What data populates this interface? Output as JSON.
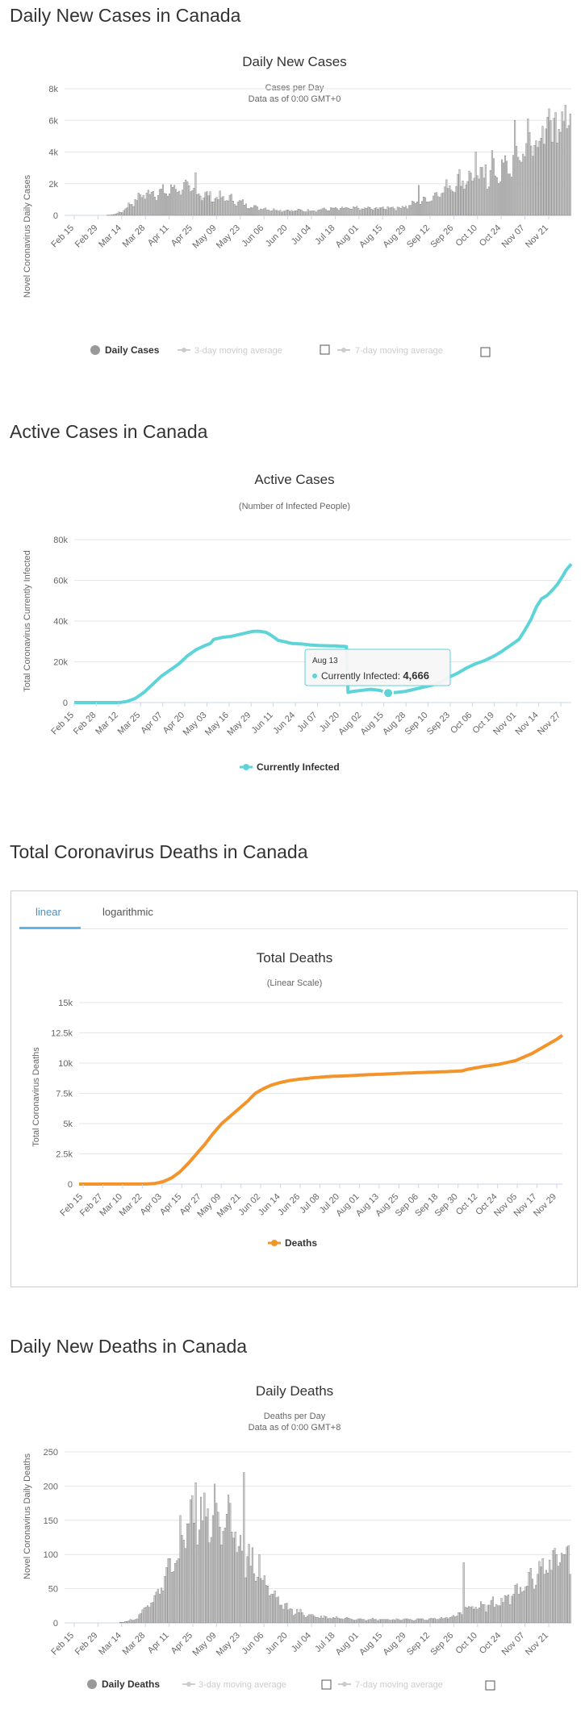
{
  "sections": {
    "daily_cases": "Daily New Cases in Canada",
    "active_cases": "Active Cases in Canada",
    "total_deaths": "Total Coronavirus Deaths in Canada",
    "daily_deaths": "Daily New Deaths in Canada"
  },
  "tabs": {
    "linear": "linear",
    "logarithmic": "logarithmic"
  },
  "colors": {
    "bar": "#cfcfcf",
    "bar_stroke": "#6b6b6b",
    "active_line": "#5ed4d9",
    "deaths_line": "#f2942a",
    "grid": "#e6e6e6",
    "legend_off": "#cccccc"
  },
  "chart_data": [
    {
      "id": "daily_cases",
      "type": "bar",
      "title": "Daily New Cases",
      "subtitle": "Cases per Day",
      "subtitle2": "Data as of 0:00 GMT+0",
      "ylabel": "Novel Coronavirus Daily Cases",
      "ylim": [
        0,
        8000
      ],
      "yticks": [
        "0",
        "2k",
        "4k",
        "6k",
        "8k"
      ],
      "xticks": [
        "Feb 15",
        "Feb 29",
        "Mar 14",
        "Mar 28",
        "Apr 11",
        "Apr 25",
        "May 09",
        "May 23",
        "Jun 06",
        "Jun 20",
        "Jul 04",
        "Jul 18",
        "Aug 01",
        "Aug 15",
        "Aug 29",
        "Sep 12",
        "Sep 26",
        "Oct 10",
        "Oct 24",
        "Nov 07",
        "Nov 21"
      ],
      "start_date": "Feb 15",
      "anchors": [
        [
          0,
          0
        ],
        [
          25,
          0
        ],
        [
          30,
          50
        ],
        [
          35,
          250
        ],
        [
          40,
          700
        ],
        [
          45,
          1100
        ],
        [
          50,
          1400
        ],
        [
          55,
          1500
        ],
        [
          60,
          1400
        ],
        [
          65,
          1600
        ],
        [
          68,
          1750
        ],
        [
          72,
          1700
        ],
        [
          76,
          1650
        ],
        [
          80,
          1500
        ],
        [
          85,
          1300
        ],
        [
          90,
          1150
        ],
        [
          95,
          1100
        ],
        [
          100,
          1050
        ],
        [
          105,
          900
        ],
        [
          110,
          700
        ],
        [
          115,
          550
        ],
        [
          120,
          450
        ],
        [
          125,
          380
        ],
        [
          130,
          330
        ],
        [
          140,
          300
        ],
        [
          150,
          300
        ],
        [
          160,
          380
        ],
        [
          170,
          420
        ],
        [
          180,
          430
        ],
        [
          190,
          420
        ],
        [
          200,
          500
        ],
        [
          205,
          480
        ],
        [
          210,
          600
        ],
        [
          215,
          750
        ],
        [
          220,
          900
        ],
        [
          225,
          1150
        ],
        [
          230,
          1500
        ],
        [
          235,
          1800
        ],
        [
          240,
          2100
        ],
        [
          245,
          2300
        ],
        [
          250,
          2350
        ],
        [
          255,
          2300
        ],
        [
          260,
          2400
        ],
        [
          265,
          2700
        ],
        [
          270,
          2900
        ],
        [
          275,
          3300
        ],
        [
          280,
          4100
        ],
        [
          285,
          4500
        ],
        [
          290,
          4800
        ],
        [
          295,
          5100
        ],
        [
          300,
          5500
        ],
        [
          305,
          6100
        ],
        [
          308,
          6000
        ]
      ],
      "spikes": [
        [
          80,
          2700
        ],
        [
          217,
          1900
        ],
        [
          248,
          2800
        ],
        [
          252,
          4000
        ],
        [
          258,
          3200
        ],
        [
          262,
          4100
        ],
        [
          276,
          6000
        ],
        [
          284,
          6100
        ],
        [
          296,
          6200
        ],
        [
          301,
          6500
        ]
      ],
      "legend": {
        "daily": "Daily Cases",
        "ma3": "3-day moving average",
        "ma7": "7-day moving average"
      }
    },
    {
      "id": "active_cases",
      "type": "line",
      "title": "Active Cases",
      "subtitle": "(Number of Infected People)",
      "ylabel": "Total Coronavirus Currently Infected",
      "ylim": [
        0,
        80000
      ],
      "yticks": [
        "0",
        "20k",
        "40k",
        "60k",
        "80k"
      ],
      "xticks": [
        "Feb 15",
        "Feb 28",
        "Mar 12",
        "Mar 25",
        "Apr 07",
        "Apr 20",
        "May 03",
        "May 16",
        "May 29",
        "Jun 11",
        "Jun 24",
        "Jul 07",
        "Jul 20",
        "Aug 02",
        "Aug 15",
        "Aug 28",
        "Sep 10",
        "Sep 23",
        "Oct 06",
        "Oct 19",
        "Nov 01",
        "Nov 14",
        "Nov 27"
      ],
      "start_date": "Feb 15",
      "anchors": [
        [
          0,
          0
        ],
        [
          26,
          0
        ],
        [
          30,
          500
        ],
        [
          35,
          2000
        ],
        [
          40,
          5000
        ],
        [
          45,
          9000
        ],
        [
          50,
          13000
        ],
        [
          55,
          16000
        ],
        [
          60,
          19000
        ],
        [
          65,
          23000
        ],
        [
          70,
          26000
        ],
        [
          75,
          28000
        ],
        [
          78,
          29000
        ],
        [
          80,
          31000
        ],
        [
          85,
          32000
        ],
        [
          90,
          32500
        ],
        [
          95,
          33500
        ],
        [
          100,
          34500
        ],
        [
          103,
          35000
        ],
        [
          106,
          35000
        ],
        [
          110,
          34500
        ],
        [
          113,
          33000
        ],
        [
          117,
          30500
        ],
        [
          120,
          30000
        ],
        [
          125,
          29000
        ],
        [
          130,
          28800
        ],
        [
          135,
          28300
        ],
        [
          140,
          28000
        ],
        [
          150,
          27800
        ],
        [
          156,
          27500
        ],
        [
          157,
          5000
        ],
        [
          160,
          5500
        ],
        [
          165,
          6000
        ],
        [
          170,
          6500
        ],
        [
          175,
          6000
        ],
        [
          180,
          4666
        ],
        [
          185,
          5000
        ],
        [
          190,
          5500
        ],
        [
          195,
          6500
        ],
        [
          200,
          7500
        ],
        [
          205,
          8500
        ],
        [
          210,
          10000
        ],
        [
          215,
          12500
        ],
        [
          220,
          14500
        ],
        [
          225,
          17000
        ],
        [
          230,
          19000
        ],
        [
          235,
          20500
        ],
        [
          240,
          22500
        ],
        [
          245,
          25000
        ],
        [
          250,
          28000
        ],
        [
          255,
          31000
        ],
        [
          258,
          35000
        ],
        [
          262,
          41000
        ],
        [
          265,
          47000
        ],
        [
          268,
          51000
        ],
        [
          271,
          52500
        ],
        [
          274,
          55000
        ],
        [
          277,
          58000
        ],
        [
          280,
          62000
        ],
        [
          282,
          65000
        ],
        [
          285,
          68000
        ]
      ],
      "tooltip": {
        "date": "Aug 13",
        "label": "Currently Infected",
        "value": "4,666",
        "day": 180
      },
      "legend": {
        "series": "Currently Infected"
      }
    },
    {
      "id": "total_deaths",
      "type": "line",
      "title": "Total Deaths",
      "subtitle": "(Linear Scale)",
      "ylabel": "Total Coronavirus Deaths",
      "ylim": [
        0,
        15000
      ],
      "yticks": [
        "0",
        "2.5k",
        "5k",
        "7.5k",
        "10k",
        "12.5k",
        "15k"
      ],
      "xticks": [
        "Feb 15",
        "Feb 27",
        "Mar 10",
        "Mar 22",
        "Apr 03",
        "Apr 15",
        "Apr 27",
        "May 09",
        "May 21",
        "Jun 02",
        "Jun 14",
        "Jun 26",
        "Jul 08",
        "Jul 20",
        "Aug 01",
        "Aug 13",
        "Aug 25",
        "Sep 06",
        "Sep 18",
        "Sep 30",
        "Oct 12",
        "Oct 24",
        "Nov 05",
        "Nov 17",
        "Nov 29"
      ],
      "start_date": "Feb 15",
      "anchors": [
        [
          0,
          0
        ],
        [
          40,
          10
        ],
        [
          45,
          50
        ],
        [
          50,
          200
        ],
        [
          55,
          500
        ],
        [
          60,
          1000
        ],
        [
          65,
          1700
        ],
        [
          70,
          2500
        ],
        [
          75,
          3300
        ],
        [
          80,
          4200
        ],
        [
          85,
          5000
        ],
        [
          90,
          5600
        ],
        [
          95,
          6200
        ],
        [
          100,
          6800
        ],
        [
          105,
          7500
        ],
        [
          110,
          7900
        ],
        [
          115,
          8200
        ],
        [
          120,
          8400
        ],
        [
          125,
          8550
        ],
        [
          130,
          8650
        ],
        [
          140,
          8800
        ],
        [
          150,
          8900
        ],
        [
          160,
          8950
        ],
        [
          170,
          9030
        ],
        [
          180,
          9080
        ],
        [
          190,
          9150
        ],
        [
          200,
          9200
        ],
        [
          210,
          9250
        ],
        [
          220,
          9300
        ],
        [
          228,
          9350
        ],
        [
          232,
          9500
        ],
        [
          240,
          9700
        ],
        [
          250,
          9900
        ],
        [
          260,
          10200
        ],
        [
          265,
          10500
        ],
        [
          270,
          10800
        ],
        [
          275,
          11200
        ],
        [
          280,
          11600
        ],
        [
          285,
          12000
        ],
        [
          288,
          12300
        ]
      ],
      "legend": {
        "series": "Deaths"
      }
    },
    {
      "id": "daily_deaths",
      "type": "bar",
      "title": "Daily Deaths",
      "subtitle": "Deaths per Day",
      "subtitle2": "Data as of 0:00 GMT+8",
      "ylabel": "Novel Coronavirus Daily Deaths",
      "ylim": [
        0,
        250
      ],
      "yticks": [
        "0",
        "50",
        "100",
        "150",
        "200",
        "250"
      ],
      "xticks": [
        "Feb 15",
        "Feb 29",
        "Mar 14",
        "Mar 28",
        "Apr 11",
        "Apr 25",
        "May 09",
        "May 23",
        "Jun 06",
        "Jun 20",
        "Jul 04",
        "Jul 18",
        "Aug 01",
        "Aug 15",
        "Aug 29",
        "Sep 12",
        "Sep 26",
        "Oct 10",
        "Oct 24",
        "Nov 07",
        "Nov 21"
      ],
      "start_date": "Feb 15",
      "anchors": [
        [
          0,
          0
        ],
        [
          30,
          0
        ],
        [
          35,
          2
        ],
        [
          40,
          5
        ],
        [
          45,
          15
        ],
        [
          50,
          30
        ],
        [
          55,
          50
        ],
        [
          60,
          70
        ],
        [
          65,
          100
        ],
        [
          70,
          130
        ],
        [
          75,
          150
        ],
        [
          80,
          155
        ],
        [
          85,
          160
        ],
        [
          90,
          155
        ],
        [
          95,
          140
        ],
        [
          100,
          120
        ],
        [
          105,
          100
        ],
        [
          110,
          80
        ],
        [
          115,
          60
        ],
        [
          120,
          45
        ],
        [
          125,
          30
        ],
        [
          130,
          20
        ],
        [
          140,
          12
        ],
        [
          150,
          8
        ],
        [
          160,
          7
        ],
        [
          170,
          6
        ],
        [
          180,
          5
        ],
        [
          190,
          5
        ],
        [
          200,
          5
        ],
        [
          210,
          5
        ],
        [
          220,
          7
        ],
        [
          228,
          10
        ],
        [
          233,
          20
        ],
        [
          240,
          22
        ],
        [
          250,
          28
        ],
        [
          260,
          38
        ],
        [
          270,
          60
        ],
        [
          275,
          75
        ],
        [
          280,
          85
        ],
        [
          285,
          90
        ],
        [
          290,
          95
        ],
        [
          293,
          100
        ]
      ],
      "spikes": [
        [
          76,
          205
        ],
        [
          81,
          190
        ],
        [
          88,
          175
        ],
        [
          104,
          220
        ],
        [
          113,
          100
        ],
        [
          232,
          88
        ],
        [
          286,
          100
        ],
        [
          293,
          113
        ]
      ],
      "legend": {
        "daily": "Daily Deaths",
        "ma3": "3-day moving average",
        "ma7": "7-day moving average"
      }
    }
  ]
}
